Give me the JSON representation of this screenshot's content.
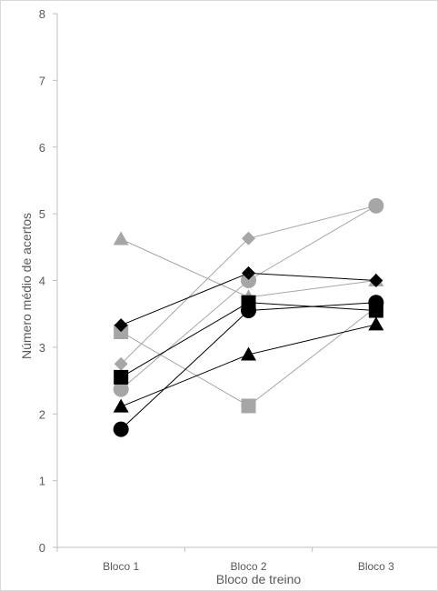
{
  "chart_data": {
    "type": "line",
    "xlabel": "Bloco de treino",
    "ylabel": "Número médio de acertos",
    "categories": [
      "Bloco 1",
      "Bloco 2",
      "Bloco 3"
    ],
    "ylim": [
      0,
      8
    ],
    "yticks": [
      0,
      1,
      2,
      3,
      4,
      5,
      6,
      7,
      8
    ],
    "grid": false,
    "legend": "none",
    "series": [
      {
        "marker": "triangle",
        "color": "#a6a6a6",
        "values": [
          4.62,
          3.75,
          4.0
        ]
      },
      {
        "marker": "diamond",
        "color": "#a6a6a6",
        "values": [
          2.75,
          4.63,
          5.12
        ]
      },
      {
        "marker": "circle",
        "color": "#a6a6a6",
        "values": [
          2.37,
          4.0,
          5.12
        ]
      },
      {
        "marker": "square",
        "color": "#a6a6a6",
        "values": [
          3.23,
          2.12,
          3.6
        ]
      },
      {
        "marker": "diamond",
        "color": "#000000",
        "values": [
          3.33,
          4.11,
          4.0
        ]
      },
      {
        "marker": "square",
        "color": "#000000",
        "values": [
          2.55,
          3.67,
          3.55
        ]
      },
      {
        "marker": "circle",
        "color": "#000000",
        "values": [
          1.77,
          3.55,
          3.67
        ]
      },
      {
        "marker": "triangle",
        "color": "#000000",
        "values": [
          2.11,
          2.89,
          3.34
        ]
      }
    ]
  }
}
